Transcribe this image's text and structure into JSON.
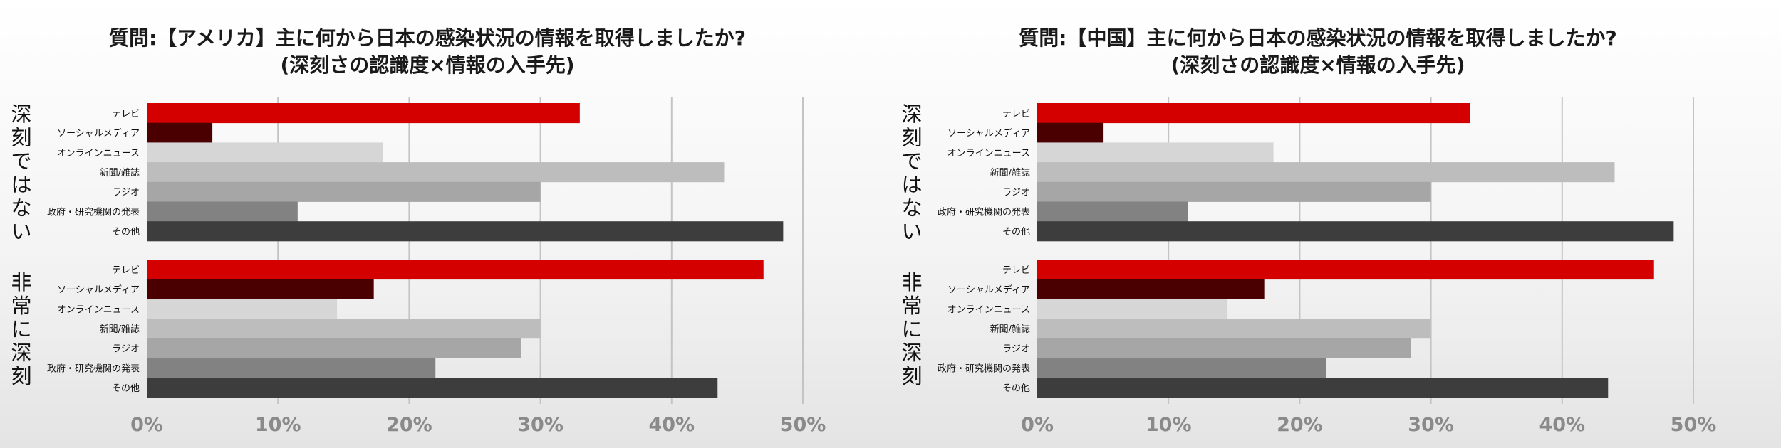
{
  "chart_data": [
    {
      "type": "bar",
      "orientation": "horizontal",
      "title": "質問:【アメリカ】主に何から日本の感染状況の情報を取得しましたか?",
      "subtitle": "(深刻さの認識度×情報の入手先)",
      "xlabel": "",
      "ylabel": "",
      "xlim": [
        0,
        50
      ],
      "x_ticks": [
        "0%",
        "10%",
        "20%",
        "30%",
        "40%",
        "50%"
      ],
      "grid": "vertical",
      "categories": [
        "テレビ",
        "ソーシャルメディア",
        "オンラインニュース",
        "新聞/雑誌",
        "ラジオ",
        "政府・研究機関の発表",
        "その他"
      ],
      "colors": [
        "#d40000",
        "#4a0000",
        "#d6d6d6",
        "#bdbdbd",
        "#a6a6a6",
        "#828282",
        "#3d3d3d"
      ],
      "groups": [
        {
          "name": "深刻ではない",
          "values": [
            33,
            5,
            18,
            44,
            30,
            11.5,
            48.5
          ]
        },
        {
          "name": "非常に深刻",
          "values": [
            47,
            17.3,
            14.5,
            30,
            28.5,
            22,
            43.5
          ]
        }
      ]
    },
    {
      "type": "bar",
      "orientation": "horizontal",
      "title": "質問:【中国】主に何から日本の感染状況の情報を取得しましたか?",
      "subtitle": "(深刻さの認識度×情報の入手先)",
      "xlabel": "",
      "ylabel": "",
      "xlim": [
        0,
        50
      ],
      "x_ticks": [
        "0%",
        "10%",
        "20%",
        "30%",
        "40%",
        "50%"
      ],
      "grid": "vertical",
      "categories": [
        "テレビ",
        "ソーシャルメディア",
        "オンラインニュース",
        "新聞/雑誌",
        "ラジオ",
        "政府・研究機関の発表",
        "その他"
      ],
      "colors": [
        "#d40000",
        "#4a0000",
        "#d6d6d6",
        "#bdbdbd",
        "#a6a6a6",
        "#828282",
        "#3d3d3d"
      ],
      "groups": [
        {
          "name": "深刻ではない",
          "values": [
            33,
            5,
            18,
            44,
            30,
            11.5,
            48.5
          ]
        },
        {
          "name": "非常に深刻",
          "values": [
            47,
            17.3,
            14.5,
            30,
            28.5,
            22,
            43.5
          ]
        }
      ]
    }
  ]
}
